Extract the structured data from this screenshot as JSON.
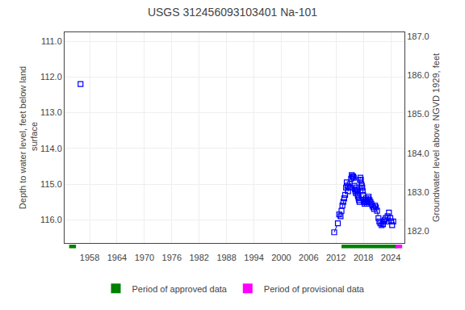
{
  "chart_data": {
    "type": "line",
    "title": "USGS 312456093103401 Na-101",
    "y_label": "Depth to water level, feet below land\n surface",
    "y2_label": "Groundwater level above NGVD 1929, feet",
    "xlim": [
      1952.5,
      2027
    ],
    "xticks": [
      1958,
      1964,
      1970,
      1976,
      1982,
      1988,
      1994,
      2000,
      2006,
      2012,
      2018,
      2024
    ],
    "ylim": [
      116.65,
      110.75
    ],
    "yticks": [
      {
        "value": 111.0,
        "label": "111.0"
      },
      {
        "value": 112.0,
        "label": "112.0"
      },
      {
        "value": 113.0,
        "label": "113.0"
      },
      {
        "value": 114.0,
        "label": "114.0"
      },
      {
        "value": 115.0,
        "label": "115.0"
      },
      {
        "value": 116.0,
        "label": "116.0"
      }
    ],
    "y2lim": [
      181.7,
      187.1
    ],
    "y2ticks": [
      {
        "value": 187.0,
        "label": "187.0"
      },
      {
        "value": 186.0,
        "label": "186.0"
      },
      {
        "value": 185.0,
        "label": "185.0"
      },
      {
        "value": 184.0,
        "label": "184.0"
      },
      {
        "value": 183.0,
        "label": "183.0"
      },
      {
        "value": 182.0,
        "label": "182.0"
      }
    ],
    "grid": true,
    "legend": "bottom",
    "series": [
      {
        "type": "scatter",
        "marker": "square-open",
        "color": "#0000FF",
        "x": [
          1956.0
        ],
        "values": [
          112.2
        ]
      },
      {
        "type": "line",
        "line_style": "dashed",
        "marker": "square-open",
        "color": "#0000FF",
        "x": [
          2011.6,
          2012.4,
          2012.7,
          2013.0,
          2013.2,
          2013.4,
          2013.6,
          2013.8,
          2014.0,
          2014.2,
          2014.35,
          2014.5,
          2014.65,
          2014.8,
          2015.0,
          2015.15,
          2015.3,
          2015.45,
          2015.6,
          2015.75,
          2015.9,
          2016.05,
          2016.15,
          2016.25,
          2016.35,
          2016.45,
          2016.55,
          2016.65,
          2016.75,
          2016.85,
          2016.95,
          2017.05,
          2017.15,
          2017.25,
          2017.35,
          2017.45,
          2017.55,
          2017.65,
          2017.75,
          2017.85,
          2017.95,
          2018.05,
          2018.15,
          2018.25,
          2018.35,
          2018.45,
          2018.55,
          2018.65,
          2018.75,
          2018.85,
          2018.95,
          2019.05,
          2019.15,
          2019.35,
          2019.55,
          2019.75,
          2019.95,
          2020.15,
          2020.35,
          2020.55,
          2020.75,
          2021.0,
          2021.3,
          2021.5,
          2021.7,
          2022.0,
          2022.3,
          2022.5,
          2022.7,
          2022.9,
          2023.1,
          2023.3,
          2023.6,
          2023.9,
          2024.1,
          2024.3,
          2024.55
        ],
        "values": [
          116.35,
          116.1,
          115.85,
          115.9,
          115.75,
          115.6,
          115.5,
          115.4,
          115.3,
          115.1,
          114.95,
          115.05,
          115.2,
          115.1,
          115.0,
          115.1,
          114.85,
          114.75,
          114.8,
          114.78,
          114.82,
          115.05,
          115.15,
          115.2,
          115.25,
          115.1,
          115.15,
          115.2,
          115.3,
          115.35,
          115.4,
          115.45,
          115.5,
          114.88,
          114.82,
          114.88,
          115.0,
          115.05,
          115.1,
          115.2,
          115.3,
          115.45,
          115.5,
          115.55,
          115.5,
          115.45,
          115.4,
          115.5,
          115.55,
          115.5,
          115.45,
          115.4,
          115.35,
          115.45,
          115.5,
          115.55,
          115.6,
          115.65,
          115.7,
          115.6,
          115.65,
          115.75,
          115.95,
          116.05,
          116.1,
          116.15,
          116.12,
          116.05,
          116.0,
          115.95,
          116.05,
          115.9,
          115.8,
          115.95,
          116.05,
          116.15,
          116.05
        ]
      }
    ],
    "periods": [
      {
        "name": "Period of approved data",
        "color": "#008000",
        "x": [
          1953.5,
          2013.2
        ],
        "widths": [
          1.5,
          12.3
        ]
      },
      {
        "name": "Period of provisional data",
        "color": "#FF00FF",
        "x": [
          2025.0
        ],
        "widths": [
          1.5
        ]
      }
    ]
  }
}
